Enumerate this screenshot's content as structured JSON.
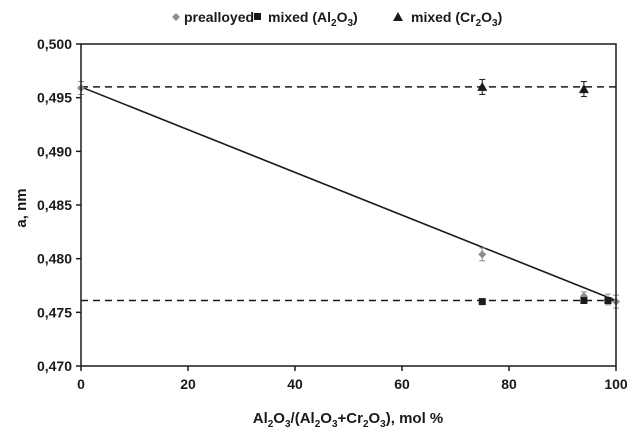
{
  "chart_data": {
    "type": "scatter",
    "title": "",
    "xlabel": "Al2O3/(Al2O3+Cr2O3), mol %",
    "ylabel": "a, nm",
    "xlim": [
      0,
      100
    ],
    "ylim": [
      0.47,
      0.5
    ],
    "x_ticks": [
      0,
      20,
      40,
      60,
      80,
      100
    ],
    "y_ticks": [
      0.47,
      0.475,
      0.48,
      0.485,
      0.49,
      0.495,
      0.5
    ],
    "x_tick_labels": [
      "0",
      "20",
      "40",
      "60",
      "80",
      "100"
    ],
    "y_tick_labels": [
      "0,470",
      "0,475",
      "0,480",
      "0,485",
      "0,490",
      "0,495",
      "0,500"
    ],
    "grid": false,
    "legend_position": "top",
    "series": [
      {
        "name": "prealloyed",
        "marker": "diamond",
        "color": "#8c8c8c",
        "x": [
          0,
          75,
          94,
          98.5,
          100
        ],
        "y": [
          0.4959,
          0.4804,
          0.4765,
          0.4762,
          0.476
        ],
        "err": [
          0.0006,
          0.0006,
          0.0004,
          0.0005,
          0.0006
        ]
      },
      {
        "name": "mixed (Al2O3)",
        "marker": "square",
        "color": "#1a1a1a",
        "x": [
          75,
          94,
          98.5
        ],
        "y": [
          0.476,
          0.4761,
          0.4761
        ],
        "err": [
          0,
          0,
          0
        ]
      },
      {
        "name": "mixed (Cr2O3)",
        "marker": "triangle",
        "color": "#1a1a1a",
        "x": [
          75,
          94
        ],
        "y": [
          0.496,
          0.4958
        ],
        "err": [
          0.0007,
          0.0007
        ]
      }
    ],
    "reference_lines": [
      {
        "style": "dashed",
        "y": 0.496,
        "x_range": [
          0,
          100
        ]
      },
      {
        "style": "dashed",
        "y": 0.4761,
        "x_range": [
          0,
          100
        ]
      },
      {
        "style": "solid",
        "x": [
          0,
          100
        ],
        "y": [
          0.496,
          0.4761
        ]
      }
    ]
  }
}
